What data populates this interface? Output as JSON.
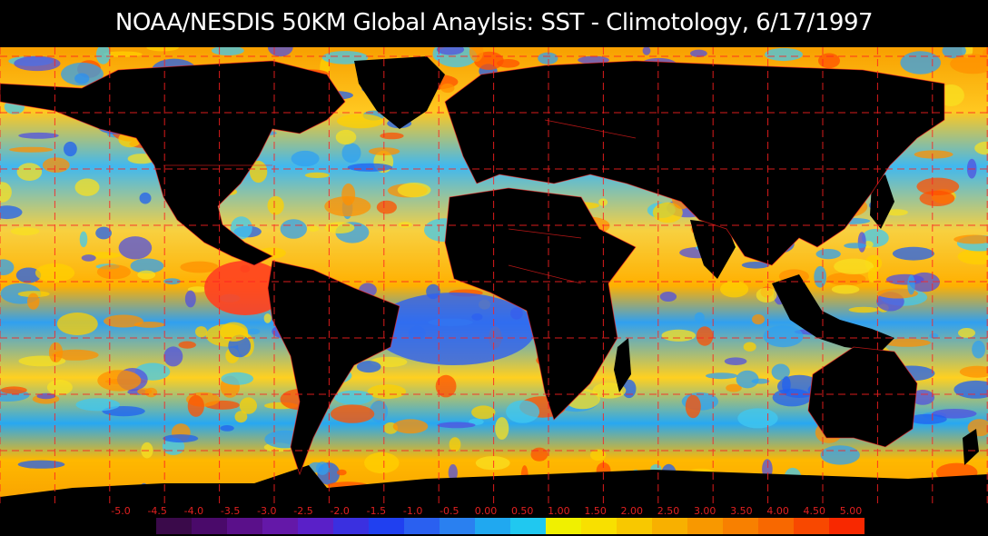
{
  "title": "NOAA/NESDIS 50KM Global Anaylsis:  SST - Climotology, 6/17/1997",
  "legend": {
    "labels": [
      "-5.0",
      "-4.5",
      "-4.0",
      "-3.5",
      "-3.0",
      "-2.5",
      "-2.0",
      "-1.5",
      "-1.0",
      "-0.5",
      "0.00",
      "0.50",
      "1.00",
      "1.50",
      "2.00",
      "2.50",
      "3.00",
      "3.50",
      "4.00",
      "4.50",
      "5.00"
    ],
    "colors": [
      "#3a0a4a",
      "#4a0a6a",
      "#5a108a",
      "#6418a8",
      "#5a20c8",
      "#3a30e0",
      "#2040f0",
      "#2a60f0",
      "#2a80f0",
      "#20a8f0",
      "#20c8f0",
      "#f0f000",
      "#f8e000",
      "#f8c800",
      "#f8b000",
      "#f89800",
      "#f88000",
      "#f86800",
      "#f84800",
      "#f82800"
    ]
  },
  "colors": {
    "land": "#000000",
    "grid_and_borders": "#ff2020",
    "ocean_warm": "#ffb000",
    "ocean_cool": "#2080f0"
  }
}
